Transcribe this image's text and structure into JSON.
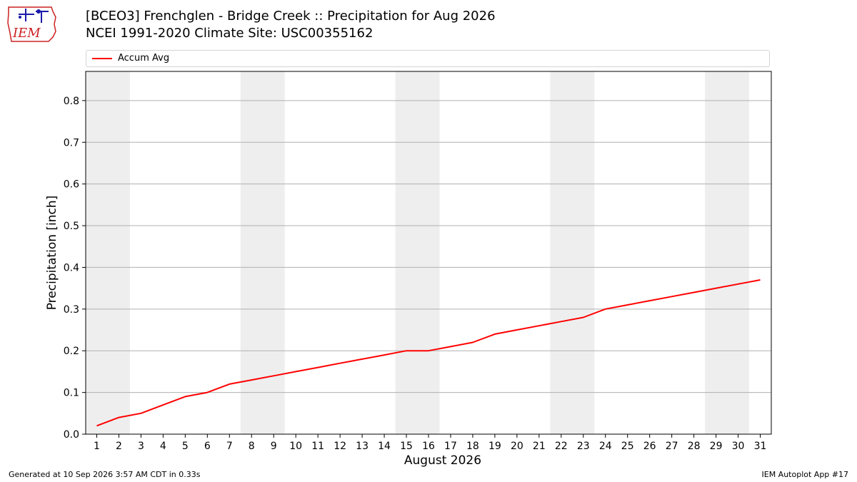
{
  "header": {
    "logo_text": "IEM",
    "title_line1": "[BCEO3] Frenchglen - Bridge Creek :: Precipitation for Aug 2026",
    "title_line2": "NCEI 1991-2020 Climate Site: USC00355162"
  },
  "footer": {
    "generated": "Generated at 10 Sep 2026 3:57 AM CDT in 0.33s",
    "app": "IEM Autoplot App #17"
  },
  "colors": {
    "line": "#ff0000",
    "weekend_band": "#eeeeee",
    "grid": "#b0b0b0",
    "logo_red": "#cc2222",
    "logo_blue": "#1a1aaa"
  },
  "chart_data": {
    "type": "line",
    "xlabel": "August 2026",
    "ylabel": "Precipitation [inch]",
    "xlim": [
      0.5,
      31.5
    ],
    "ylim": [
      0,
      0.87
    ],
    "y_ticks": [
      0.0,
      0.1,
      0.2,
      0.3,
      0.4,
      0.5,
      0.6,
      0.7,
      0.8
    ],
    "x_ticks": [
      1,
      2,
      3,
      4,
      5,
      6,
      7,
      8,
      9,
      10,
      11,
      12,
      13,
      14,
      15,
      16,
      17,
      18,
      19,
      20,
      21,
      22,
      23,
      24,
      25,
      26,
      27,
      28,
      29,
      30,
      31
    ],
    "grid": "horizontal",
    "legend_position": "top",
    "shaded_days": [
      [
        1,
        2
      ],
      [
        8,
        9
      ],
      [
        15,
        16
      ],
      [
        22,
        23
      ],
      [
        29,
        30
      ]
    ],
    "series": [
      {
        "name": "Accum Avg",
        "x": [
          1,
          2,
          3,
          4,
          5,
          6,
          7,
          8,
          9,
          10,
          11,
          12,
          13,
          14,
          15,
          16,
          17,
          18,
          19,
          20,
          21,
          22,
          23,
          24,
          25,
          26,
          27,
          28,
          29,
          30,
          31
        ],
        "y": [
          0.02,
          0.04,
          0.05,
          0.07,
          0.09,
          0.1,
          0.12,
          0.13,
          0.14,
          0.15,
          0.16,
          0.17,
          0.18,
          0.19,
          0.2,
          0.2,
          0.21,
          0.22,
          0.24,
          0.25,
          0.26,
          0.27,
          0.28,
          0.3,
          0.31,
          0.32,
          0.33,
          0.34,
          0.35,
          0.36,
          0.37
        ]
      }
    ]
  }
}
